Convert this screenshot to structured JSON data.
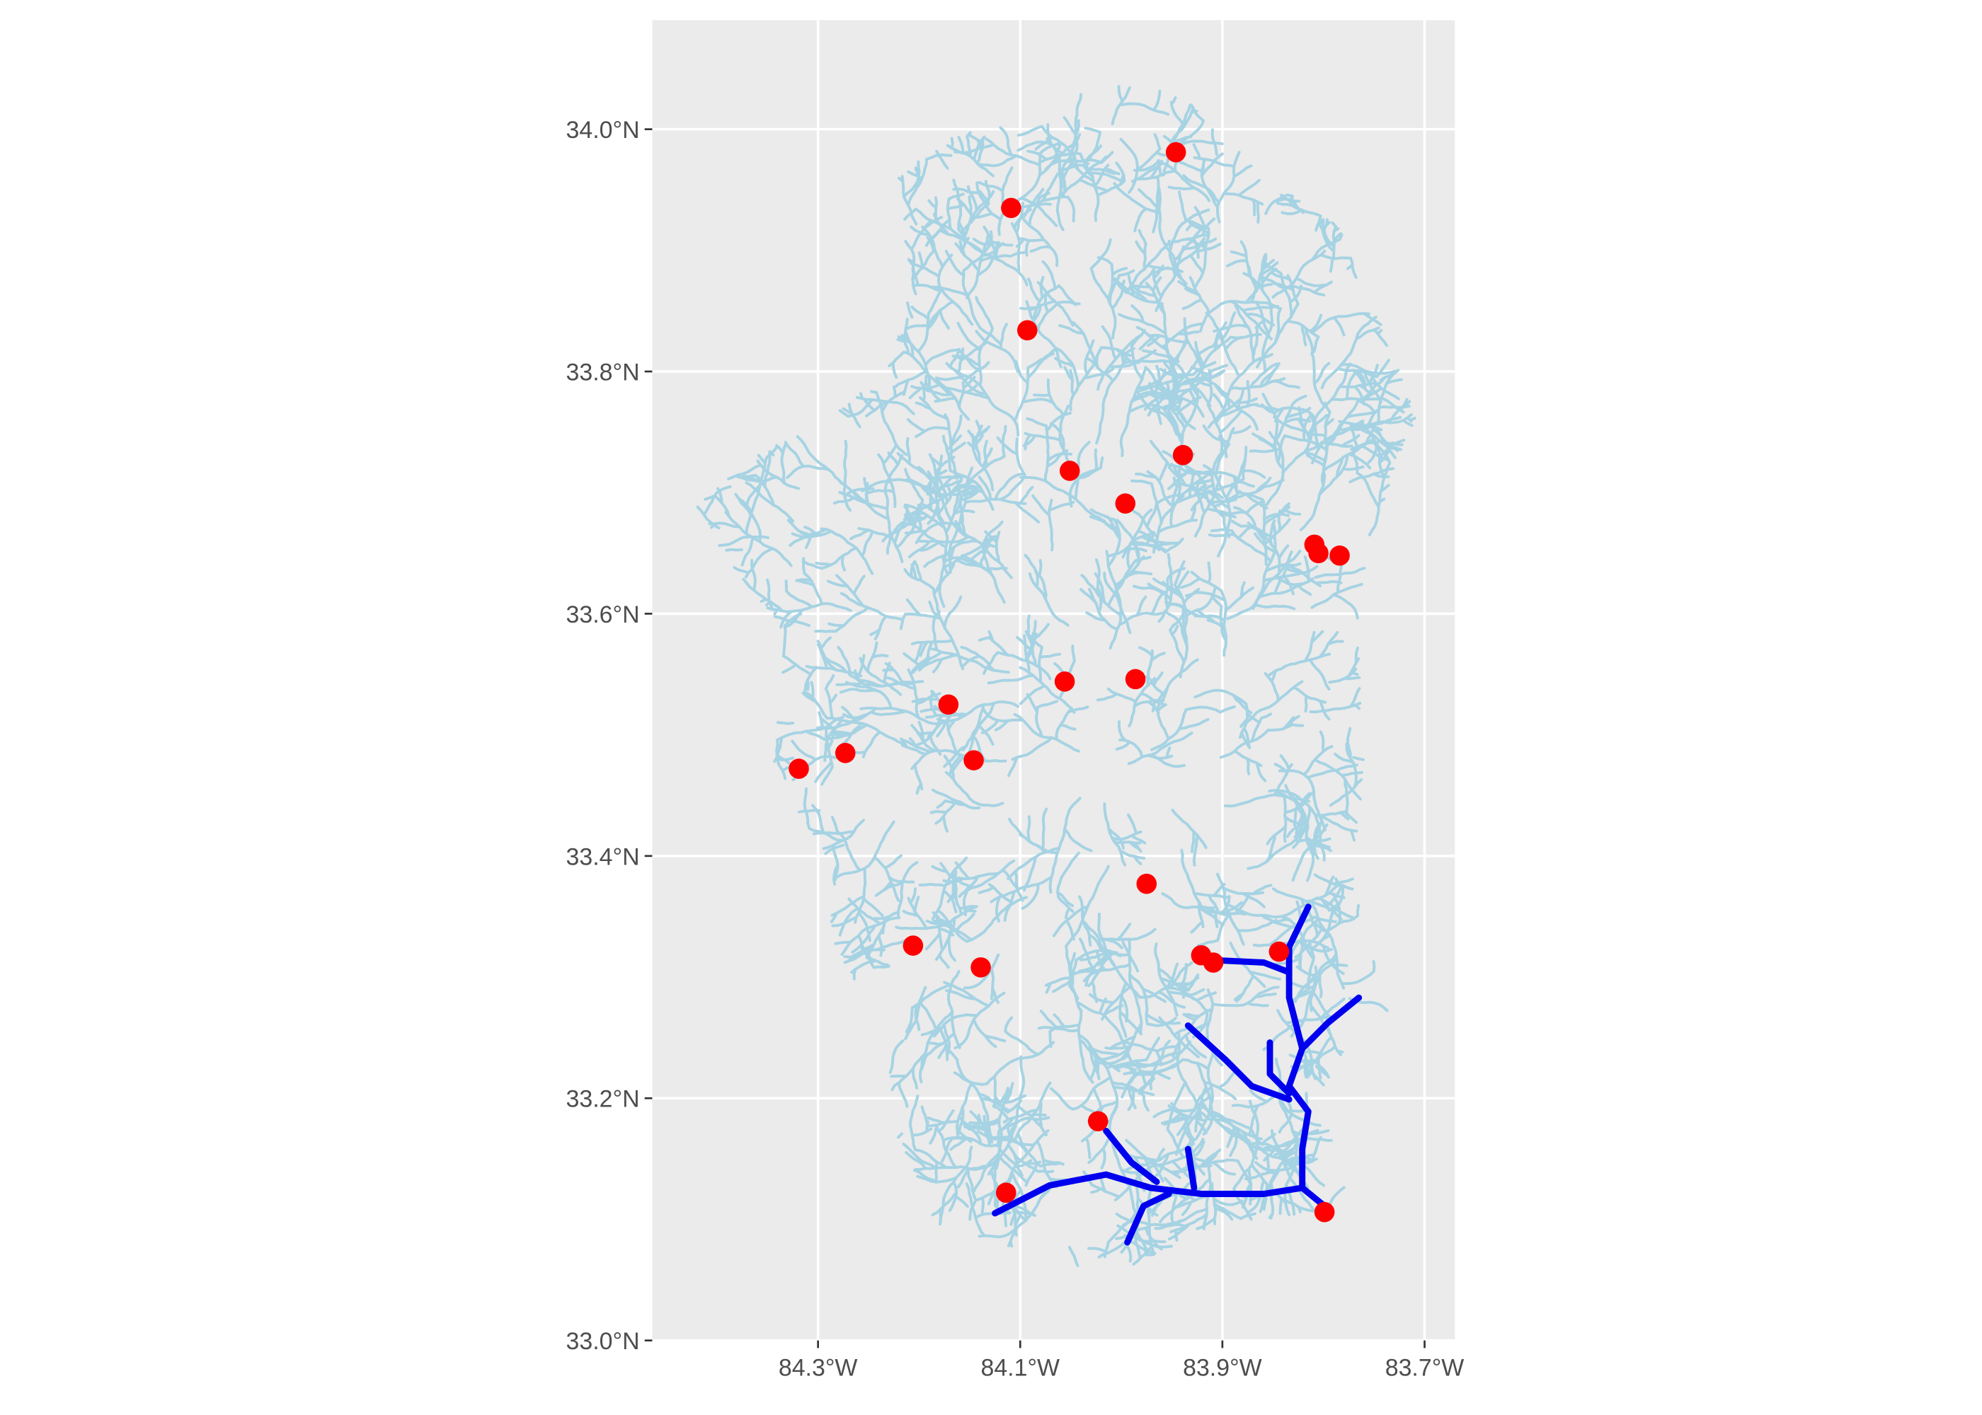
{
  "chart_data": {
    "type": "map",
    "xlim": [
      -84.464,
      -83.67
    ],
    "ylim": [
      33.0,
      34.09
    ],
    "xticks": [
      {
        "value": -84.3,
        "label": "84.3°W"
      },
      {
        "value": -84.1,
        "label": "84.1°W"
      },
      {
        "value": -83.9,
        "label": "83.9°W"
      },
      {
        "value": -83.7,
        "label": "83.7°W"
      }
    ],
    "yticks": [
      {
        "value": 33.0,
        "label": "33.0°N"
      },
      {
        "value": 33.2,
        "label": "33.2°N"
      },
      {
        "value": 33.4,
        "label": "33.4°N"
      },
      {
        "value": 33.6,
        "label": "33.6°N"
      },
      {
        "value": 33.8,
        "label": "33.8°N"
      },
      {
        "value": 34.0,
        "label": "34.0°N"
      }
    ],
    "grid": true,
    "stream_color": "#a6d3e3",
    "flowlines": {
      "color": "#0000ee",
      "lines": [
        {
          "x": [
            -84.125,
            -84.071,
            -84.015,
            -83.971,
            -83.921,
            -83.859,
            -83.821,
            -83.799
          ],
          "y": [
            33.105,
            33.128,
            33.137,
            33.126,
            33.121,
            33.121,
            33.126,
            33.111
          ]
        },
        {
          "x": [
            -83.815,
            -83.834,
            -83.834,
            -83.821,
            -83.834,
            -83.815,
            -83.821,
            -83.821
          ],
          "y": [
            33.358,
            33.325,
            33.283,
            33.241,
            33.21,
            33.189,
            33.158,
            33.126
          ]
        },
        {
          "x": [
            -83.909,
            -83.859,
            -83.834
          ],
          "y": [
            33.314,
            33.312,
            33.304
          ]
        },
        {
          "x": [
            -83.765,
            -83.796,
            -83.821
          ],
          "y": [
            33.283,
            33.262,
            33.241
          ]
        },
        {
          "x": [
            -83.934,
            -83.896,
            -83.871,
            -83.834
          ],
          "y": [
            33.26,
            33.231,
            33.21,
            33.199
          ]
        },
        {
          "x": [
            -83.853,
            -83.853,
            -83.834
          ],
          "y": [
            33.246,
            33.22,
            33.204
          ]
        },
        {
          "x": [
            -84.015,
            -83.99,
            -83.965
          ],
          "y": [
            33.173,
            33.147,
            33.131
          ]
        },
        {
          "x": [
            -83.994,
            -83.978,
            -83.953
          ],
          "y": [
            33.081,
            33.111,
            33.121
          ]
        },
        {
          "x": [
            -83.934,
            -83.928
          ],
          "y": [
            33.158,
            33.126
          ]
        }
      ]
    },
    "points": {
      "color": "#ff0000",
      "x": [
        -83.946,
        -84.109,
        -84.093,
        -84.051,
        -83.939,
        -83.996,
        -83.809,
        -83.805,
        -83.784,
        -84.056,
        -83.986,
        -84.171,
        -84.273,
        -84.319,
        -84.146,
        -83.975,
        -84.206,
        -84.139,
        -83.921,
        -83.909,
        -83.844,
        -84.023,
        -84.114,
        -83.799
      ],
      "y": [
        33.981,
        33.935,
        33.834,
        33.718,
        33.731,
        33.691,
        33.657,
        33.65,
        33.648,
        33.544,
        33.546,
        33.525,
        33.485,
        33.472,
        33.479,
        33.377,
        33.326,
        33.308,
        33.318,
        33.312,
        33.321,
        33.181,
        33.122,
        33.106
      ]
    }
  }
}
